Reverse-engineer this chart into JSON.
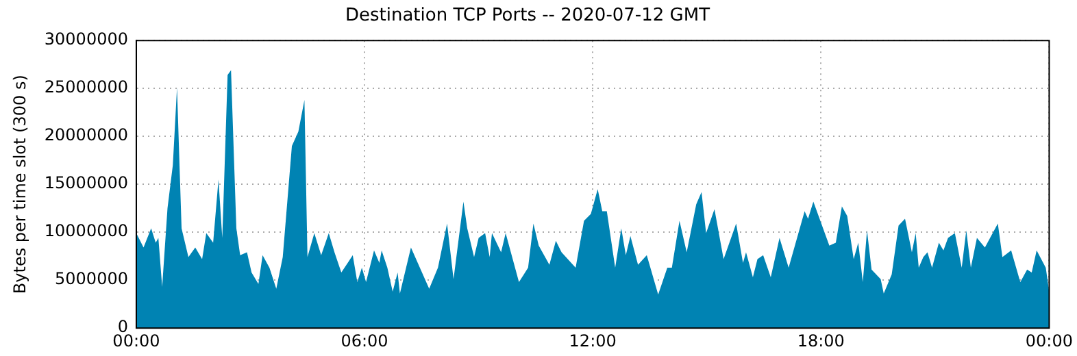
{
  "chart_data": {
    "type": "area",
    "title": "Destination TCP Ports -- 2020-07-12 GMT",
    "ylabel": "Bytes per time slot (300 s)",
    "x": [
      0,
      0.19,
      0.39,
      0.51,
      0.58,
      0.68,
      0.82,
      0.96,
      1.07,
      1.19,
      1.37,
      1.55,
      1.73,
      1.84,
      2.02,
      2.16,
      2.26,
      2.4,
      2.49,
      2.63,
      2.73,
      2.91,
      3.03,
      3.21,
      3.32,
      3.5,
      3.68,
      3.85,
      4.09,
      4.26,
      4.42,
      4.5,
      4.68,
      4.86,
      5.06,
      5.21,
      5.39,
      5.69,
      5.81,
      5.93,
      6.04,
      6.25,
      6.39,
      6.45,
      6.6,
      6.74,
      6.87,
      6.93,
      7.22,
      7.7,
      7.93,
      8.17,
      8.34,
      8.6,
      8.7,
      8.88,
      9,
      9.17,
      9.29,
      9.35,
      9.59,
      9.71,
      10.06,
      10.3,
      10.44,
      10.58,
      10.86,
      11.03,
      11.18,
      11.55,
      11.77,
      11.95,
      12.13,
      12.25,
      12.37,
      12.59,
      12.75,
      12.87,
      12.99,
      13.19,
      13.42,
      13.72,
      13.96,
      14.08,
      14.28,
      14.47,
      14.72,
      14.86,
      14.98,
      15.2,
      15.44,
      15.77,
      15.95,
      16.03,
      16.21,
      16.33,
      16.48,
      16.68,
      16.91,
      17.15,
      17.57,
      17.66,
      17.8,
      18.22,
      18.39,
      18.55,
      18.69,
      18.86,
      18.98,
      19.1,
      19.21,
      19.33,
      19.57,
      19.65,
      19.86,
      20.04,
      20.21,
      20.39,
      20.49,
      20.57,
      20.69,
      20.8,
      20.92,
      21.1,
      21.22,
      21.34,
      21.52,
      21.7,
      21.82,
      21.94,
      22.1,
      22.31,
      22.65,
      22.77,
      23,
      23.24,
      23.42,
      23.54,
      23.67,
      23.91,
      24
    ],
    "series": [
      {
        "color": "#0083b3",
        "values": [
          9900000,
          8400000,
          10400000,
          8900000,
          9400000,
          4300000,
          12500000,
          17000000,
          25100000,
          10400000,
          7400000,
          8400000,
          7200000,
          9900000,
          8900000,
          15500000,
          9400000,
          26400000,
          26900000,
          10400000,
          7600000,
          7900000,
          5800000,
          4600000,
          7600000,
          6300000,
          4100000,
          7400000,
          19000000,
          20500000,
          23800000,
          7400000,
          9900000,
          7600000,
          9900000,
          7900000,
          5800000,
          7600000,
          4800000,
          6300000,
          4800000,
          8100000,
          6800000,
          8100000,
          6300000,
          3800000,
          5800000,
          3600000,
          8400000,
          4100000,
          6300000,
          10900000,
          5100000,
          13200000,
          10400000,
          7400000,
          9400000,
          9900000,
          7400000,
          9900000,
          7900000,
          9900000,
          4800000,
          6300000,
          10900000,
          8600000,
          6600000,
          9100000,
          7900000,
          6300000,
          11200000,
          11900000,
          14500000,
          12200000,
          12200000,
          6300000,
          10400000,
          7600000,
          9600000,
          6600000,
          7600000,
          3500000,
          6300000,
          6300000,
          11200000,
          7900000,
          12900000,
          14200000,
          9900000,
          12400000,
          7200000,
          10900000,
          6800000,
          7900000,
          5300000,
          7200000,
          7600000,
          5300000,
          9400000,
          6300000,
          12200000,
          11400000,
          13200000,
          8600000,
          8900000,
          12700000,
          11700000,
          7200000,
          8900000,
          4800000,
          10200000,
          6100000,
          5100000,
          3600000,
          5600000,
          10700000,
          11400000,
          7900000,
          9900000,
          6300000,
          7400000,
          7900000,
          6300000,
          8900000,
          8100000,
          9400000,
          9900000,
          6300000,
          10200000,
          6300000,
          9400000,
          8400000,
          10900000,
          7400000,
          8100000,
          4800000,
          6100000,
          5800000,
          8100000,
          6300000,
          3800000
        ]
      }
    ],
    "xlim": [
      0,
      24
    ],
    "xticks": [
      {
        "value": 0,
        "label": "00:00"
      },
      {
        "value": 6,
        "label": "06:00"
      },
      {
        "value": 12,
        "label": "12:00"
      },
      {
        "value": 18,
        "label": "18:00"
      },
      {
        "value": 24,
        "label": "00:00"
      }
    ],
    "ylim": [
      0,
      30000000
    ],
    "yticks": [
      0,
      5000000,
      10000000,
      15000000,
      20000000,
      25000000,
      30000000
    ],
    "grid": true,
    "legend": false,
    "marker": "none"
  }
}
